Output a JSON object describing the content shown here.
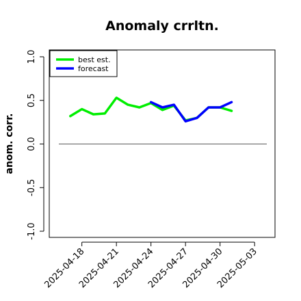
{
  "chart_data": {
    "type": "line",
    "title": "Anomaly crrltn.",
    "xlabel": "",
    "ylabel": "anom. corr.",
    "ylim": [
      -1.0,
      1.0
    ],
    "y_ticks": [
      "-1.0",
      "-0.5",
      "0.0",
      "0.5",
      "1.0"
    ],
    "x_tick_labels": [
      "2025-04-18",
      "2025-04-21",
      "2025-04-24",
      "2025-04-27",
      "2025-04-30",
      "2025-05-03"
    ],
    "x_tick_colors": [
      "#000000",
      "#000000",
      "#228B22",
      "#000000",
      "#000000",
      "#000000"
    ],
    "reference_line": 0,
    "legend_position": "top-left",
    "series": [
      {
        "name": "best est.",
        "color": "#00ee00",
        "x": [
          "2025-04-17",
          "2025-04-18",
          "2025-04-19",
          "2025-04-20",
          "2025-04-21",
          "2025-04-22",
          "2025-04-23",
          "2025-04-24",
          "2025-04-25",
          "2025-04-26",
          "2025-04-27",
          "2025-04-28",
          "2025-04-29",
          "2025-04-30",
          "2025-05-01"
        ],
        "values": [
          0.32,
          0.4,
          0.34,
          0.35,
          0.53,
          0.45,
          0.42,
          0.47,
          0.39,
          0.44,
          0.27,
          0.3,
          0.42,
          0.42,
          0.38
        ]
      },
      {
        "name": "forecast",
        "color": "#0000ff",
        "x": [
          "2025-04-24",
          "2025-04-25",
          "2025-04-26",
          "2025-04-27",
          "2025-04-28",
          "2025-04-29",
          "2025-04-30",
          "2025-05-01"
        ],
        "values": [
          0.48,
          0.42,
          0.45,
          0.26,
          0.3,
          0.42,
          0.42,
          0.48
        ]
      }
    ]
  }
}
